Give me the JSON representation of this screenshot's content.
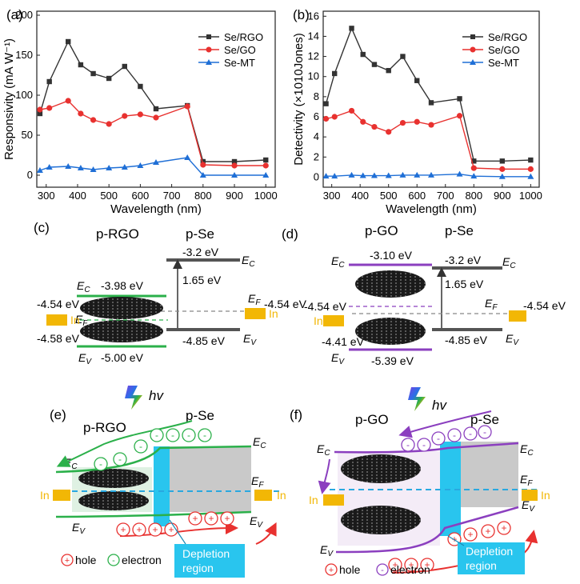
{
  "panel_letters": {
    "a": "(a)",
    "b": "(b)",
    "c": "(c)",
    "d": "(d)",
    "e": "(e)",
    "f": "(f)"
  },
  "colors": {
    "se_rgo": "#333333",
    "se_go": "#e8312f",
    "se_mt": "#1f6fd6",
    "rgo_band": "#2bb04a",
    "go_band": "#8b3fbf",
    "depletion": "#29c5ee",
    "indium": "#f2b705",
    "se_gray": "#c9c9c9"
  },
  "chart_data": [
    {
      "id": "a",
      "type": "line",
      "xlabel": "Wavelength (nm)",
      "ylabel": "Responsivity (mA W⁻¹)",
      "xlim": [
        270,
        1030
      ],
      "ylim": [
        -15,
        205
      ],
      "xticks": [
        300,
        400,
        500,
        600,
        700,
        800,
        900,
        1000
      ],
      "yticks": [
        0,
        50,
        100,
        150,
        200
      ],
      "legend_position": "top-right",
      "grid": false,
      "series": [
        {
          "name": "Se/RGO",
          "marker": "square",
          "color": "#333333",
          "x": [
            280,
            310,
            370,
            410,
            450,
            500,
            550,
            600,
            650,
            750,
            800,
            900,
            1000
          ],
          "y": [
            77,
            117,
            167,
            138,
            127,
            121,
            136,
            111,
            83,
            87,
            17,
            17,
            19
          ]
        },
        {
          "name": "Se/GO",
          "marker": "circle",
          "color": "#e8312f",
          "x": [
            280,
            310,
            370,
            410,
            450,
            500,
            550,
            600,
            650,
            750,
            800,
            900,
            1000
          ],
          "y": [
            82,
            84,
            93,
            77,
            69,
            64,
            74,
            76,
            72,
            86,
            13,
            12,
            12
          ]
        },
        {
          "name": "Se-MT",
          "marker": "triangle",
          "color": "#1f6fd6",
          "x": [
            280,
            310,
            370,
            410,
            450,
            500,
            550,
            600,
            650,
            750,
            800,
            900,
            1000
          ],
          "y": [
            6,
            10,
            11,
            9,
            7,
            9,
            10,
            12,
            16,
            22,
            0,
            0,
            0
          ]
        }
      ]
    },
    {
      "id": "b",
      "type": "line",
      "xlabel": "Wavelength (nm)",
      "ylabel": "Detectivity (×1010Jones)",
      "xlim": [
        270,
        1030
      ],
      "ylim": [
        -1,
        16.5
      ],
      "xticks": [
        300,
        400,
        500,
        600,
        700,
        800,
        900,
        1000
      ],
      "yticks": [
        0,
        2,
        4,
        6,
        8,
        10,
        12,
        14,
        16
      ],
      "legend_position": "top-right",
      "grid": false,
      "series": [
        {
          "name": "Se/RGO",
          "marker": "square",
          "color": "#333333",
          "x": [
            280,
            310,
            370,
            410,
            450,
            500,
            550,
            600,
            650,
            750,
            800,
            900,
            1000
          ],
          "y": [
            7.3,
            10.3,
            14.8,
            12.2,
            11.2,
            10.6,
            12.0,
            9.6,
            7.4,
            7.8,
            1.6,
            1.6,
            1.7
          ]
        },
        {
          "name": "Se/GO",
          "marker": "circle",
          "color": "#e8312f",
          "x": [
            280,
            310,
            370,
            410,
            450,
            500,
            550,
            600,
            650,
            750,
            800,
            900,
            1000
          ],
          "y": [
            5.8,
            6.0,
            6.6,
            5.5,
            5.0,
            4.5,
            5.4,
            5.5,
            5.2,
            6.1,
            0.9,
            0.8,
            0.8
          ]
        },
        {
          "name": "Se-MT",
          "marker": "triangle",
          "color": "#1f6fd6",
          "x": [
            280,
            310,
            370,
            410,
            450,
            500,
            550,
            600,
            650,
            750,
            800,
            900,
            1000
          ],
          "y": [
            0.1,
            0.1,
            0.2,
            0.15,
            0.15,
            0.15,
            0.2,
            0.2,
            0.2,
            0.3,
            0.1,
            0.05,
            0.05
          ]
        }
      ]
    }
  ],
  "panel_c": {
    "left_title": "p-RGO",
    "right_title": "p-Se",
    "ec_label": "E",
    "ec_sub": "C",
    "ev_label": "E",
    "ev_sub": "V",
    "ef_label": "E",
    "ef_sub": "F",
    "rgo_ec": "-3.98 eV",
    "rgo_ef_left": "-4.54 eV",
    "rgo_ef_shift": "-4.58 eV",
    "rgo_ev": "-5.00 eV",
    "se_ec": "-3.2 eV",
    "se_gap": "1.65 eV",
    "se_ef": "-4.54 eV",
    "se_ev": "-4.85 eV",
    "in_label": "In"
  },
  "panel_d": {
    "left_title": "p-GO",
    "right_title": "p-Se",
    "go_ec": "-3.10 eV",
    "go_ef_left": "-4.54 eV",
    "go_ef_shift": "-4.41 eV",
    "go_ev": "-5.39 eV",
    "se_ec": "-3.2 eV",
    "se_gap": "1.65 eV",
    "se_ef": "-4.54 eV",
    "se_ev": "-4.85 eV",
    "in_label": "In"
  },
  "panel_e": {
    "hv": "hv",
    "left_title": "p-RGO",
    "right_title": "p-Se",
    "electron_symbol": "-",
    "hole_symbol": "+",
    "depletion_line1": "Depletion",
    "depletion_line2": "region",
    "legend_hole": "hole",
    "legend_electron": "electron",
    "in_label": "In"
  },
  "panel_f": {
    "hv": "hv",
    "left_title": "p-GO",
    "right_title": "p-Se",
    "electron_symbol": "-",
    "hole_symbol": "+",
    "depletion_line1": "Depletion",
    "depletion_line2": "region",
    "legend_hole": "hole",
    "legend_electron": "electron",
    "in_label": "In"
  }
}
